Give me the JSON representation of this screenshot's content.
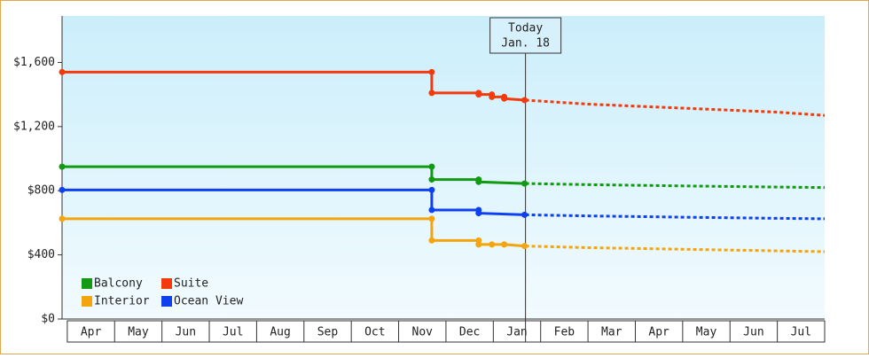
{
  "chart_data": {
    "type": "line",
    "xlim": [
      -0.11,
      16
    ],
    "xticks": [
      {
        "value": 0.5,
        "label": "Apr"
      },
      {
        "value": 1.5,
        "label": "May"
      },
      {
        "value": 2.5,
        "label": "Jun"
      },
      {
        "value": 3.5,
        "label": "Jul"
      },
      {
        "value": 4.5,
        "label": "Aug"
      },
      {
        "value": 5.5,
        "label": "Sep"
      },
      {
        "value": 6.5,
        "label": "Oct"
      },
      {
        "value": 7.5,
        "label": "Nov"
      },
      {
        "value": 8.5,
        "label": "Dec"
      },
      {
        "value": 9.5,
        "label": "Jan"
      },
      {
        "value": 10.5,
        "label": "Feb"
      },
      {
        "value": 11.5,
        "label": "Mar"
      },
      {
        "value": 12.5,
        "label": "Apr"
      },
      {
        "value": 13.5,
        "label": "May"
      },
      {
        "value": 14.5,
        "label": "Jun"
      },
      {
        "value": 15.5,
        "label": "Jul"
      }
    ],
    "ylim": [
      0,
      1890
    ],
    "yticks": [
      {
        "value": 0,
        "label": "$0"
      },
      {
        "value": 400,
        "label": "$400"
      },
      {
        "value": 800,
        "label": "$800"
      },
      {
        "value": 1200,
        "label": "$1,200"
      },
      {
        "value": 1600,
        "label": "$1,600"
      }
    ],
    "legend": "lower left",
    "annotation": {
      "lines": [
        "Today",
        "Jan. 18"
      ],
      "x": 9.68
    },
    "series": [
      {
        "name": "Balcony",
        "color": "#139a13",
        "x": [
          -0.11,
          7.7,
          7.7,
          8.69,
          8.69,
          9.66
        ],
        "values": [
          950,
          950,
          870,
          870,
          855,
          845
        ],
        "forecast": {
          "x": [
            9.68,
            11,
            13,
            15,
            16
          ],
          "values": [
            845,
            838,
            830,
            823,
            820
          ]
        }
      },
      {
        "name": "Suite",
        "color": "#f23a0c",
        "x": [
          -0.11,
          7.7,
          7.7,
          8.69,
          8.69,
          8.97,
          8.97,
          9.23,
          9.23,
          9.66
        ],
        "values": [
          1540,
          1540,
          1410,
          1410,
          1400,
          1400,
          1385,
          1385,
          1375,
          1365
        ],
        "forecast": {
          "x": [
            9.68,
            11,
            13,
            15,
            16
          ],
          "values": [
            1365,
            1340,
            1315,
            1290,
            1270
          ]
        }
      },
      {
        "name": "Interior",
        "color": "#f4a40c",
        "x": [
          -0.11,
          7.7,
          7.7,
          8.69,
          8.69,
          8.97,
          9.23,
          9.66
        ],
        "values": [
          625,
          625,
          490,
          490,
          465,
          465,
          465,
          455
        ],
        "forecast": {
          "x": [
            9.68,
            11,
            13,
            15,
            16
          ],
          "values": [
            455,
            445,
            435,
            425,
            420
          ]
        }
      },
      {
        "name": "Ocean View",
        "color": "#0f40f0",
        "x": [
          -0.11,
          7.7,
          7.7,
          8.69,
          8.69,
          9.66
        ],
        "values": [
          805,
          805,
          680,
          680,
          660,
          650
        ],
        "forecast": {
          "x": [
            9.68,
            11,
            13,
            15,
            16
          ],
          "values": [
            650,
            643,
            635,
            628,
            625
          ]
        }
      }
    ]
  }
}
